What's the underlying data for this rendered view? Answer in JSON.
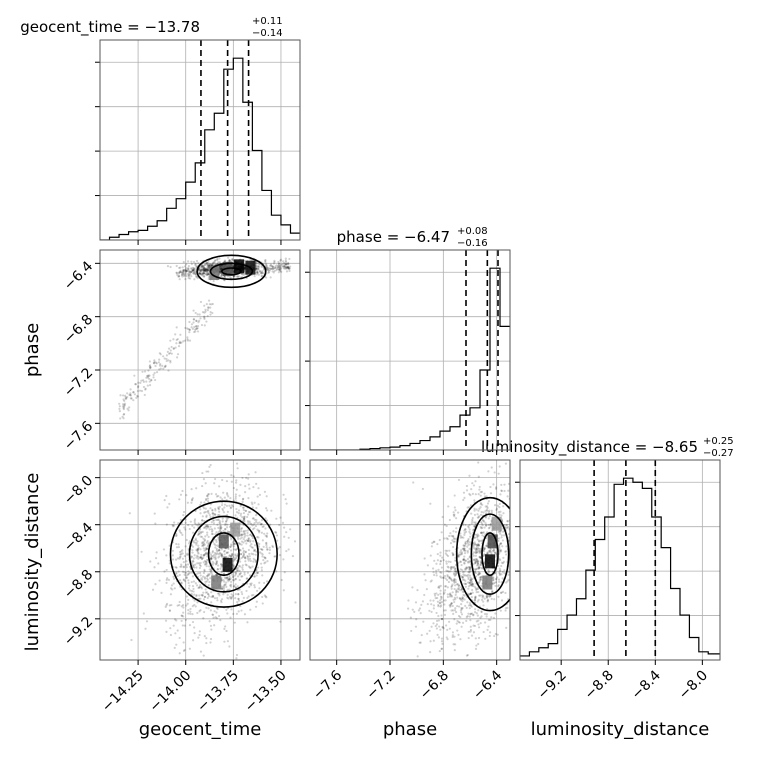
{
  "chart_data": {
    "type": "corner",
    "parameters": [
      "geocent_time",
      "phase",
      "luminosity_distance"
    ],
    "titles": [
      {
        "param": "geocent_time",
        "prefix": "geocent_time = ",
        "median": "−13.78",
        "upper": "+0.11",
        "lower": "−0.14"
      },
      {
        "param": "phase",
        "prefix": "phase = ",
        "median": "−6.47",
        "upper": "+0.08",
        "lower": "−0.16"
      },
      {
        "param": "luminosity_distance",
        "prefix": "luminosity_distance = ",
        "median": "−8.65",
        "upper": "+0.25",
        "lower": "−0.27"
      }
    ],
    "ranges": {
      "geocent_time": [
        -14.45,
        -13.4
      ],
      "phase": [
        -7.8,
        -6.3
      ],
      "luminosity_distance": [
        -9.55,
        -7.85
      ]
    },
    "ticks": {
      "geocent_time": [
        {
          "v": -14.25,
          "t": "−14.25"
        },
        {
          "v": -14.0,
          "t": "−14.00"
        },
        {
          "v": -13.75,
          "t": "−13.75"
        },
        {
          "v": -13.5,
          "t": "−13.50"
        }
      ],
      "phase": [
        {
          "v": -7.6,
          "t": "−7.6"
        },
        {
          "v": -7.2,
          "t": "−7.2"
        },
        {
          "v": -6.8,
          "t": "−6.8"
        },
        {
          "v": -6.4,
          "t": "−6.4"
        }
      ],
      "luminosity_distance": [
        {
          "v": -9.2,
          "t": "−9.2"
        },
        {
          "v": -8.8,
          "t": "−8.8"
        },
        {
          "v": -8.4,
          "t": "−8.4"
        },
        {
          "v": -8.0,
          "t": "−8.0"
        }
      ]
    },
    "quantiles": {
      "geocent_time": [
        -13.92,
        -13.78,
        -13.67
      ],
      "phase": [
        -6.63,
        -6.47,
        -6.39
      ],
      "luminosity_distance": [
        -8.92,
        -8.65,
        -8.4
      ]
    },
    "histograms": {
      "geocent_time": {
        "edges": [
          -14.45,
          -14.4,
          -14.35,
          -14.3,
          -14.25,
          -14.2,
          -14.15,
          -14.1,
          -14.05,
          -14.0,
          -13.95,
          -13.9,
          -13.85,
          -13.8,
          -13.75,
          -13.7,
          -13.65,
          -13.6,
          -13.55,
          -13.5,
          -13.45,
          -13.4
        ],
        "counts": [
          0,
          4,
          8,
          12,
          14,
          20,
          28,
          46,
          60,
          84,
          112,
          160,
          184,
          248,
          264,
          200,
          130,
          72,
          36,
          22,
          10
        ]
      },
      "phase": {
        "edges": [
          -7.8,
          -7.725,
          -7.65,
          -7.575,
          -7.5,
          -7.425,
          -7.35,
          -7.275,
          -7.2,
          -7.125,
          -7.05,
          -6.975,
          -6.9,
          -6.825,
          -6.75,
          -6.675,
          -6.6,
          -6.525,
          -6.45,
          -6.375,
          -6.3
        ],
        "counts": [
          0,
          0,
          0,
          0,
          0,
          1,
          2,
          3,
          4,
          6,
          9,
          13,
          18,
          26,
          32,
          48,
          58,
          110,
          250,
          170
        ]
      },
      "luminosity_distance": {
        "edges": [
          -9.55,
          -9.47,
          -9.39,
          -9.31,
          -9.23,
          -9.15,
          -9.07,
          -8.99,
          -8.91,
          -8.83,
          -8.75,
          -8.67,
          -8.59,
          -8.51,
          -8.43,
          -8.35,
          -8.27,
          -8.19,
          -8.11,
          -8.03,
          -7.95,
          -7.85
        ],
        "counts": [
          4,
          8,
          12,
          16,
          30,
          44,
          60,
          88,
          118,
          140,
          172,
          178,
          174,
          168,
          140,
          110,
          70,
          44,
          22,
          8,
          6
        ]
      }
    },
    "grid": true,
    "color": "#000000"
  }
}
